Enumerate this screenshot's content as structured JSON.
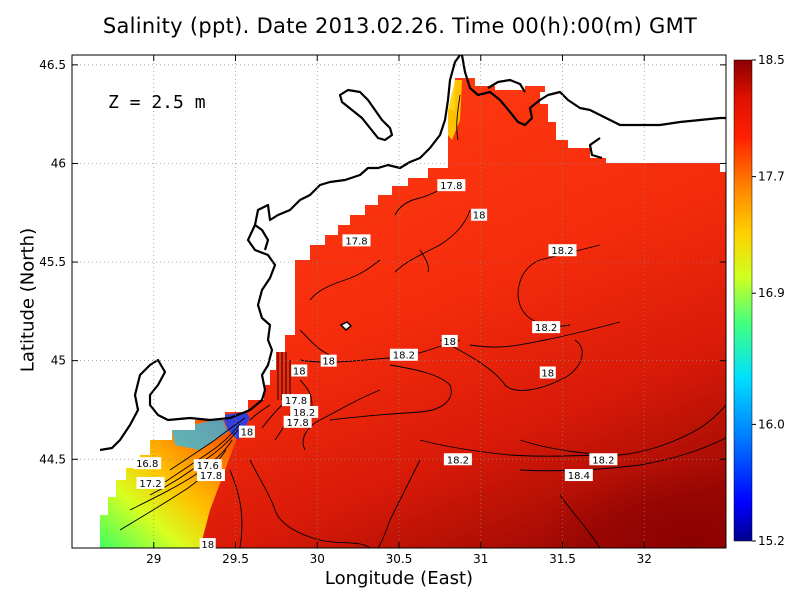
{
  "chart_data": {
    "type": "heatmap",
    "title": "Salinity (ppt). Date 2013.02.26. Time 00(h):00(m) GMT",
    "xlabel": "Longitude (East)",
    "ylabel": "Latitude (North)",
    "depth_label": "Z = 2.5 m",
    "xlim": [
      28.5,
      32.5
    ],
    "ylim": [
      44.05,
      46.55
    ],
    "x_ticks": [
      29,
      29.5,
      30,
      30.5,
      31,
      31.5,
      32
    ],
    "x_tick_labels": [
      "29",
      "29.5",
      "30",
      "30.5",
      "31",
      "31.5",
      "32"
    ],
    "y_ticks": [
      44.5,
      45,
      45.5,
      46,
      46.5
    ],
    "y_tick_labels": [
      "44.5",
      "45",
      "45.5",
      "46",
      "46.5"
    ],
    "grid": true,
    "colorbar": {
      "min": 15.2,
      "max": 18.5,
      "tick_values": [
        18.5,
        17.7,
        16.9,
        16.0,
        15.2
      ],
      "tick_labels": [
        "18.5",
        "17.7",
        "16.9",
        "16.0",
        "15.2"
      ],
      "colors": [
        "#00008f",
        "#0000ff",
        "#0080ff",
        "#00e0ff",
        "#40ff80",
        "#d0ff20",
        "#ffd000",
        "#ff8000",
        "#ff2000",
        "#e01000",
        "#8b0000"
      ]
    },
    "contour_labels": [
      {
        "text": "17.8",
        "lon": 30.82,
        "lat": 45.89
      },
      {
        "text": "18",
        "lon": 30.99,
        "lat": 45.74
      },
      {
        "text": "17.8",
        "lon": 30.24,
        "lat": 45.61
      },
      {
        "text": "18.2",
        "lon": 31.5,
        "lat": 45.56
      },
      {
        "text": "18.2",
        "lon": 31.4,
        "lat": 45.17
      },
      {
        "text": "18",
        "lon": 30.81,
        "lat": 45.1
      },
      {
        "text": "18.2",
        "lon": 30.53,
        "lat": 45.03
      },
      {
        "text": "18",
        "lon": 30.07,
        "lat": 45.0
      },
      {
        "text": "18",
        "lon": 31.41,
        "lat": 44.94
      },
      {
        "text": "18",
        "lon": 29.89,
        "lat": 44.95
      },
      {
        "text": "17.8",
        "lon": 29.87,
        "lat": 44.8
      },
      {
        "text": "18.2",
        "lon": 29.92,
        "lat": 44.74
      },
      {
        "text": "17.8",
        "lon": 29.88,
        "lat": 44.69
      },
      {
        "text": "18",
        "lon": 29.57,
        "lat": 44.64
      },
      {
        "text": "16.8",
        "lon": 28.96,
        "lat": 44.48
      },
      {
        "text": "17.6",
        "lon": 29.33,
        "lat": 44.47
      },
      {
        "text": "17.8",
        "lon": 29.35,
        "lat": 44.42
      },
      {
        "text": "17.2",
        "lon": 28.98,
        "lat": 44.38
      },
      {
        "text": "18.2",
        "lon": 30.86,
        "lat": 44.5
      },
      {
        "text": "18.2",
        "lon": 31.75,
        "lat": 44.5
      },
      {
        "text": "18.4",
        "lon": 31.6,
        "lat": 44.42
      },
      {
        "text": "18",
        "lon": 29.33,
        "lat": 44.07
      }
    ]
  }
}
